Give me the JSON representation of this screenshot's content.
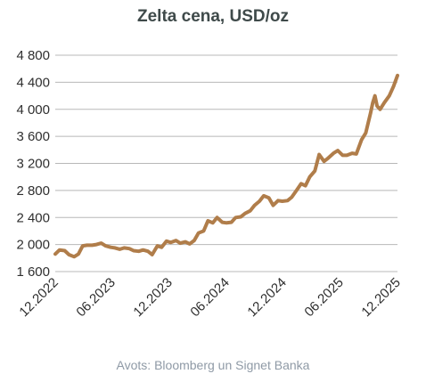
{
  "chart_data": {
    "type": "line",
    "title": "Zelta cena, USD/oz",
    "source": "Avots: Bloomberg un Signet Banka",
    "ylim": [
      1600,
      4800
    ],
    "yticks": [
      1600,
      2000,
      2400,
      2800,
      3200,
      3600,
      4000,
      4400,
      4800
    ],
    "ytick_labels": [
      "1 600",
      "2 000",
      "2 400",
      "2 800",
      "3 200",
      "3 600",
      "4 000",
      "4 400",
      "4 800"
    ],
    "xtick_labels": [
      "12.2022",
      "06.2023",
      "12.2023",
      "06.2024",
      "12.2024",
      "06.2025",
      "12.2025"
    ],
    "grid_y": true,
    "line_color": "#b07d4a",
    "series": [
      {
        "x": [
          "2022-12-01",
          "2022-12-15",
          "2023-01-01",
          "2023-01-15",
          "2023-02-01",
          "2023-02-15",
          "2023-03-01",
          "2023-03-15",
          "2023-04-01",
          "2023-04-15",
          "2023-05-01",
          "2023-05-15",
          "2023-06-01",
          "2023-06-15",
          "2023-07-01",
          "2023-07-15",
          "2023-08-01",
          "2023-08-15",
          "2023-09-01",
          "2023-09-15",
          "2023-10-01",
          "2023-10-15",
          "2023-11-01",
          "2023-11-15",
          "2023-12-01",
          "2023-12-15",
          "2024-01-01",
          "2024-01-15",
          "2024-02-01",
          "2024-02-15",
          "2024-03-01",
          "2024-03-15",
          "2024-04-01",
          "2024-04-15",
          "2024-05-01",
          "2024-05-15",
          "2024-06-01",
          "2024-06-15",
          "2024-07-01",
          "2024-07-15",
          "2024-08-01",
          "2024-08-15",
          "2024-09-01",
          "2024-09-15",
          "2024-10-01",
          "2024-10-15",
          "2024-11-01",
          "2024-11-15",
          "2024-12-01",
          "2024-12-15",
          "2025-01-01",
          "2025-01-15",
          "2025-02-01",
          "2025-02-15",
          "2025-03-01",
          "2025-03-15",
          "2025-04-01",
          "2025-04-15",
          "2025-05-01",
          "2025-05-15",
          "2025-06-01",
          "2025-06-15",
          "2025-07-01",
          "2025-07-15",
          "2025-08-01",
          "2025-08-15",
          "2025-09-01",
          "2025-09-15",
          "2025-10-01",
          "2025-10-08",
          "2025-10-15",
          "2025-10-22",
          "2025-11-01",
          "2025-11-15",
          "2025-12-01",
          "2025-12-15",
          "2025-12-28"
        ],
        "values": [
          1860,
          1920,
          1910,
          1850,
          1820,
          1860,
          1980,
          1990,
          1990,
          2000,
          2020,
          1980,
          1960,
          1950,
          1930,
          1950,
          1940,
          1910,
          1900,
          1920,
          1900,
          1850,
          1980,
          1960,
          2050,
          2030,
          2060,
          2020,
          2040,
          2010,
          2060,
          2170,
          2200,
          2350,
          2320,
          2400,
          2330,
          2320,
          2330,
          2400,
          2410,
          2460,
          2500,
          2580,
          2640,
          2720,
          2690,
          2580,
          2650,
          2640,
          2650,
          2700,
          2810,
          2900,
          2870,
          3000,
          3090,
          3330,
          3230,
          3280,
          3350,
          3390,
          3320,
          3320,
          3350,
          3340,
          3550,
          3650,
          3950,
          4100,
          4200,
          4050,
          4000,
          4100,
          4200,
          4340,
          4500
        ]
      }
    ]
  }
}
